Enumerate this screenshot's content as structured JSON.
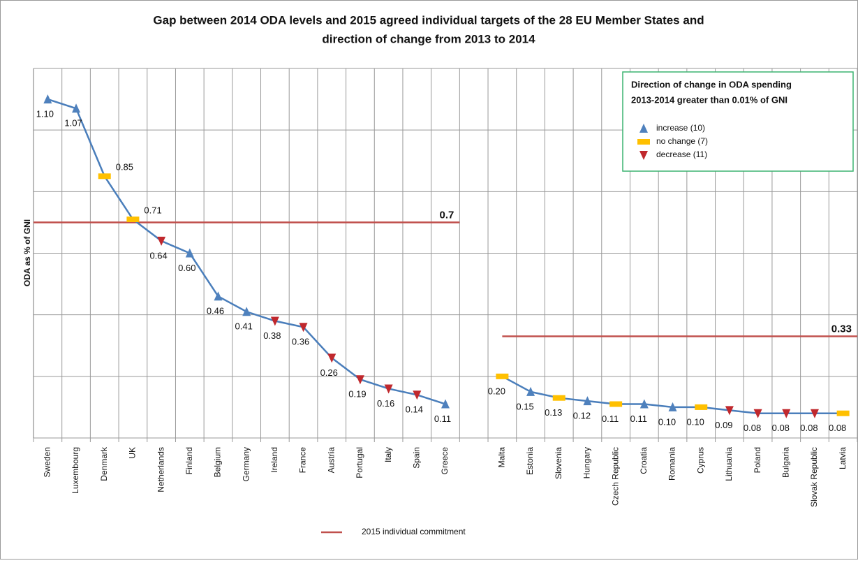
{
  "chart_data": {
    "type": "line",
    "title": [
      "Gap between 2014 ODA levels and 2015 agreed individual targets of the 28 EU Member States and",
      "direction of change from 2013 to 2014"
    ],
    "y_label": "ODA as % of GNI",
    "categories": [
      "Sweden",
      "Luxembourg",
      "Denmark",
      "UK",
      "Netherlands",
      "Finland",
      "Belgium",
      "Germany",
      "Ireland",
      "France",
      "Austria",
      "Portugal",
      "Italy",
      "Spain",
      "Greece",
      null,
      "Malta",
      "Estonia",
      "Slovenia",
      "Hungary",
      "Czech Republic",
      "Croatia",
      "Romania",
      "Cyprus",
      "Lithuania",
      "Poland",
      "Bulgaria",
      "Slovak Republic",
      "Latvia"
    ],
    "values": [
      1.1,
      1.07,
      0.85,
      0.71,
      0.64,
      0.6,
      0.46,
      0.41,
      0.38,
      0.36,
      0.26,
      0.19,
      0.16,
      0.14,
      0.11,
      null,
      0.2,
      0.15,
      0.13,
      0.12,
      0.11,
      0.11,
      0.1,
      0.1,
      0.09,
      0.08,
      0.08,
      0.08,
      0.08
    ],
    "value_labels": [
      "1.10",
      "1.07",
      "0.85",
      "0.71",
      "0.64",
      "0.60",
      "0.46",
      "0.41",
      "0.38",
      "0.36",
      "0.26",
      "0.19",
      "0.16",
      "0.14",
      "0.11",
      null,
      "0.20",
      "0.15",
      "0.13",
      "0.12",
      "0.11",
      "0.11",
      "0.10",
      "0.10",
      "0.09",
      "0.08",
      "0.08",
      "0.08",
      "0.08"
    ],
    "color": "#4a7ebb",
    "directions": [
      0,
      0,
      1,
      1,
      2,
      0,
      0,
      0,
      2,
      2,
      2,
      2,
      2,
      2,
      0,
      null,
      1,
      0,
      1,
      0,
      1,
      0,
      0,
      1,
      2,
      2,
      2,
      2,
      1
    ],
    "direction_legend": {
      "title": [
        "Direction of change in ODA spending",
        "2013-2014 greater than 0.01% of GNI"
      ],
      "items": [
        {
          "label": "increase (10)",
          "color": "#4f81bd"
        },
        {
          "label": "no change (7)",
          "color": "#ffc000"
        },
        {
          "label": "decrease (11)",
          "color": "#c0282d"
        }
      ]
    },
    "targets": [
      0.7,
      0.33
    ],
    "target_name": "2015 individual commitment",
    "target_color": "#c0504d",
    "ylim": [
      0,
      1.2
    ],
    "yticks": [
      0,
      0.2,
      0.4,
      0.6,
      0.8,
      1.0,
      1.2
    ],
    "grid": true
  }
}
